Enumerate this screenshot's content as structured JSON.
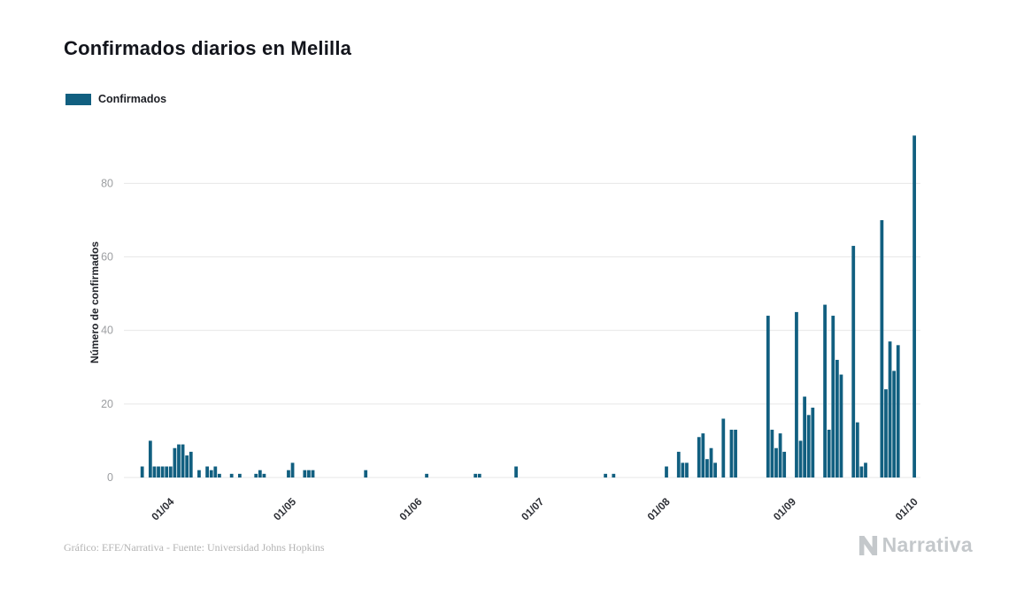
{
  "page": {
    "title": "Confirmados diarios en Melilla",
    "legend": {
      "label": "Confirmados",
      "color": "#115f80"
    },
    "footer": {
      "credit": "Gráfico: EFE/Narrativa - Fuente: Universidad Johns Hopkins",
      "brand": "Narrativa"
    }
  },
  "chart_data": {
    "type": "bar",
    "title": "Confirmados diarios en Melilla",
    "xlabel": "",
    "ylabel": "Número de confirmados",
    "series_name": "Confirmados",
    "color": "#115f80",
    "grid": true,
    "legend_position": "top-left",
    "ylim": [
      0,
      95
    ],
    "yticks": [
      0,
      20,
      40,
      60,
      80
    ],
    "total_days": 196,
    "x_ticks": [
      {
        "label": "01/04",
        "day": 12
      },
      {
        "label": "01/05",
        "day": 42
      },
      {
        "label": "01/06",
        "day": 73
      },
      {
        "label": "01/07",
        "day": 103
      },
      {
        "label": "01/08",
        "day": 134
      },
      {
        "label": "01/09",
        "day": 165
      },
      {
        "label": "01/10",
        "day": 195
      }
    ],
    "points": [
      {
        "date": "24/03",
        "day": 4,
        "value": 3
      },
      {
        "date": "26/03",
        "day": 6,
        "value": 10
      },
      {
        "date": "27/03",
        "day": 7,
        "value": 3
      },
      {
        "date": "28/03",
        "day": 8,
        "value": 3
      },
      {
        "date": "29/03",
        "day": 9,
        "value": 3
      },
      {
        "date": "30/03",
        "day": 10,
        "value": 3
      },
      {
        "date": "31/03",
        "day": 11,
        "value": 3
      },
      {
        "date": "01/04",
        "day": 12,
        "value": 8
      },
      {
        "date": "02/04",
        "day": 13,
        "value": 9
      },
      {
        "date": "03/04",
        "day": 14,
        "value": 9
      },
      {
        "date": "04/04",
        "day": 15,
        "value": 6
      },
      {
        "date": "05/04",
        "day": 16,
        "value": 7
      },
      {
        "date": "07/04",
        "day": 18,
        "value": 2
      },
      {
        "date": "09/04",
        "day": 20,
        "value": 3
      },
      {
        "date": "10/04",
        "day": 21,
        "value": 2
      },
      {
        "date": "11/04",
        "day": 22,
        "value": 3
      },
      {
        "date": "12/04",
        "day": 23,
        "value": 1
      },
      {
        "date": "15/04",
        "day": 26,
        "value": 1
      },
      {
        "date": "17/04",
        "day": 28,
        "value": 1
      },
      {
        "date": "21/04",
        "day": 32,
        "value": 1
      },
      {
        "date": "22/04",
        "day": 33,
        "value": 2
      },
      {
        "date": "23/04",
        "day": 34,
        "value": 1
      },
      {
        "date": "29/04",
        "day": 40,
        "value": 2
      },
      {
        "date": "30/04",
        "day": 41,
        "value": 4
      },
      {
        "date": "03/05",
        "day": 44,
        "value": 2
      },
      {
        "date": "04/05",
        "day": 45,
        "value": 2
      },
      {
        "date": "05/05",
        "day": 46,
        "value": 2
      },
      {
        "date": "18/05",
        "day": 59,
        "value": 2
      },
      {
        "date": "02/06",
        "day": 74,
        "value": 1
      },
      {
        "date": "14/06",
        "day": 86,
        "value": 1
      },
      {
        "date": "15/06",
        "day": 87,
        "value": 1
      },
      {
        "date": "24/06",
        "day": 96,
        "value": 3
      },
      {
        "date": "16/07",
        "day": 118,
        "value": 1
      },
      {
        "date": "18/07",
        "day": 120,
        "value": 1
      },
      {
        "date": "31/07",
        "day": 133,
        "value": 3
      },
      {
        "date": "03/08",
        "day": 136,
        "value": 7
      },
      {
        "date": "04/08",
        "day": 137,
        "value": 4
      },
      {
        "date": "05/08",
        "day": 138,
        "value": 4
      },
      {
        "date": "08/08",
        "day": 141,
        "value": 11
      },
      {
        "date": "09/08",
        "day": 142,
        "value": 12
      },
      {
        "date": "10/08",
        "day": 143,
        "value": 5
      },
      {
        "date": "11/08",
        "day": 144,
        "value": 8
      },
      {
        "date": "12/08",
        "day": 145,
        "value": 4
      },
      {
        "date": "14/08",
        "day": 147,
        "value": 16
      },
      {
        "date": "16/08",
        "day": 149,
        "value": 13
      },
      {
        "date": "17/08",
        "day": 150,
        "value": 13
      },
      {
        "date": "25/08",
        "day": 158,
        "value": 44
      },
      {
        "date": "26/08",
        "day": 159,
        "value": 13
      },
      {
        "date": "27/08",
        "day": 160,
        "value": 8
      },
      {
        "date": "28/08",
        "day": 161,
        "value": 12
      },
      {
        "date": "29/08",
        "day": 162,
        "value": 7
      },
      {
        "date": "01/09",
        "day": 165,
        "value": 45
      },
      {
        "date": "02/09",
        "day": 166,
        "value": 10
      },
      {
        "date": "03/09",
        "day": 167,
        "value": 22
      },
      {
        "date": "04/09",
        "day": 168,
        "value": 17
      },
      {
        "date": "05/09",
        "day": 169,
        "value": 19
      },
      {
        "date": "08/09",
        "day": 172,
        "value": 47
      },
      {
        "date": "09/09",
        "day": 173,
        "value": 13
      },
      {
        "date": "10/09",
        "day": 174,
        "value": 44
      },
      {
        "date": "11/09",
        "day": 175,
        "value": 32
      },
      {
        "date": "12/09",
        "day": 176,
        "value": 28
      },
      {
        "date": "15/09",
        "day": 179,
        "value": 63
      },
      {
        "date": "16/09",
        "day": 180,
        "value": 15
      },
      {
        "date": "17/09",
        "day": 181,
        "value": 3
      },
      {
        "date": "18/09",
        "day": 182,
        "value": 4
      },
      {
        "date": "22/09",
        "day": 186,
        "value": 70
      },
      {
        "date": "23/09",
        "day": 187,
        "value": 24
      },
      {
        "date": "24/09",
        "day": 188,
        "value": 37
      },
      {
        "date": "25/09",
        "day": 189,
        "value": 29
      },
      {
        "date": "26/09",
        "day": 190,
        "value": 36
      },
      {
        "date": "30/09",
        "day": 194,
        "value": 93
      }
    ]
  }
}
